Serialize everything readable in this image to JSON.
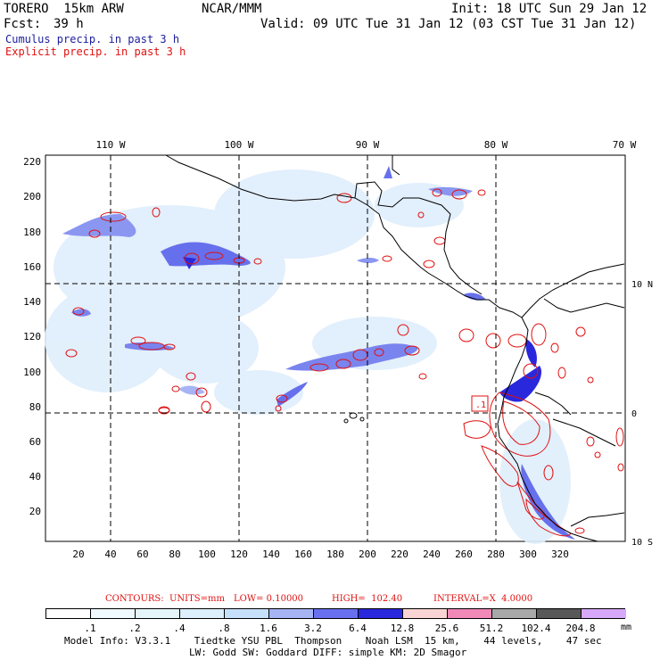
{
  "header": {
    "model": "TORERO  15km ARW",
    "org": "NCAR/MMM",
    "init": "Init: 18 UTC Sun 29 Jan 12",
    "fcst_label": "Fcst:",
    "fcst_value": "39 h",
    "valid": "Valid: 09 UTC Tue 31 Jan 12 (03 CST Tue 31 Jan 12)",
    "line1": "Cumulus precip. in past 3 h",
    "line2": "Explicit precip. in past 3 h",
    "colors": {
      "cumulus": "#1c1c9c",
      "explicit": "#e01010"
    }
  },
  "map": {
    "lon_labels": [
      "110 W",
      "100 W",
      "90 W",
      "80 W",
      "70 W"
    ],
    "lat_labels": [
      "10 N",
      "0",
      "10 S"
    ],
    "y_ticks": [
      "220",
      "200",
      "180",
      "160",
      "140",
      "120",
      "100",
      "80",
      "60",
      "40",
      "20"
    ],
    "x_ticks": [
      "20",
      "40",
      "60",
      "80",
      "100",
      "120",
      "140",
      "160",
      "180",
      "200",
      "220",
      "240",
      "260",
      "280",
      "300",
      "320"
    ],
    "low_center": ".1"
  },
  "contour_info": {
    "label": "CONTOURS:",
    "units": "UNITS=mm",
    "low": "LOW= 0.10000",
    "high": "HIGH=  102.40",
    "interval": "INTERVAL=X  4.0000"
  },
  "colorbar": {
    "labels": [
      ".1",
      ".2",
      ".4",
      ".8",
      "1.6",
      "3.2",
      "6.4",
      "12.8",
      "25.6",
      "51.2",
      "102.4",
      "204.8"
    ],
    "colors": [
      "#ffffff",
      "#eefaff",
      "#e4f6fa",
      "#ddeefc",
      "#c6e0fc",
      "#a6b4f4",
      "#6870f0",
      "#2a28dc",
      "#fad4d4",
      "#f088b8",
      "#a8a8a8",
      "#585858",
      "#d8a8f8"
    ],
    "unit": "mm"
  },
  "footer": {
    "line1": "Model Info: V3.3.1    Tiedtke YSU PBL  Thompson    Noah LSM  15 km,    44 levels,    47 sec",
    "line2": "LW: Godd SW: Goddard DIFF: simple KM: 2D Smagor"
  }
}
